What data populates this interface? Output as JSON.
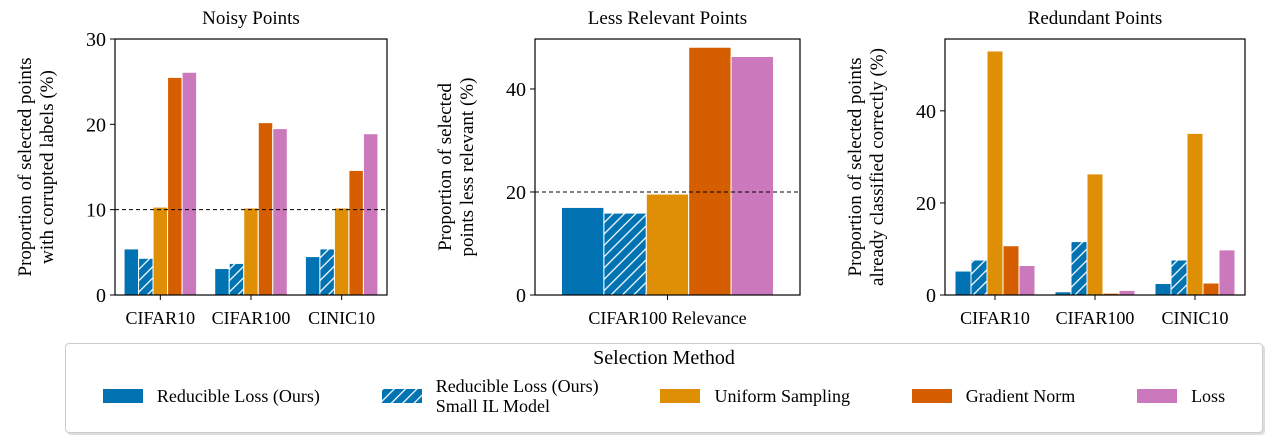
{
  "chart_data": [
    {
      "type": "bar",
      "title": "Noisy Points",
      "y_label": [
        "Proportion of selected points",
        "with corrupted labels (%)"
      ],
      "categories": [
        "CIFAR10",
        "CIFAR100",
        "CINIC10"
      ],
      "series": [
        {
          "name": "Reducible Loss (Ours)",
          "color": "#0173b2",
          "values": [
            5.4,
            3.1,
            4.5
          ]
        },
        {
          "name": "Reducible Loss (Ours)\nSmall IL Model",
          "color": "#0173b2",
          "hatch": true,
          "values": [
            4.3,
            3.7,
            5.4
          ]
        },
        {
          "name": "Uniform Sampling",
          "color": "#de8f05",
          "values": [
            10.3,
            10.2,
            10.2
          ]
        },
        {
          "name": "Gradient Norm",
          "color": "#d55e00",
          "values": [
            25.5,
            20.2,
            14.6
          ]
        },
        {
          "name": "Loss",
          "color": "#cc78bc",
          "values": [
            26.1,
            19.5,
            18.9
          ]
        }
      ],
      "reference_line": 10,
      "ylim": [
        0,
        30
      ],
      "yticks": [
        0,
        10,
        20,
        30
      ]
    },
    {
      "type": "bar",
      "title": "Less Relevant Points",
      "y_label": [
        "Proportion of selected",
        "points less relevant (%)"
      ],
      "categories": [
        "CIFAR100 Relevance"
      ],
      "series": [
        {
          "name": "Reducible Loss (Ours)",
          "color": "#0173b2",
          "values": [
            17.0
          ]
        },
        {
          "name": "Reducible Loss (Ours)\nSmall IL Model",
          "color": "#0173b2",
          "hatch": true,
          "values": [
            15.9
          ]
        },
        {
          "name": "Uniform Sampling",
          "color": "#de8f05",
          "values": [
            19.6
          ]
        },
        {
          "name": "Gradient Norm",
          "color": "#d55e00",
          "values": [
            48.1
          ]
        },
        {
          "name": "Loss",
          "color": "#cc78bc",
          "values": [
            46.3
          ]
        }
      ],
      "reference_line": 20,
      "ylim": [
        0,
        49.7
      ],
      "yticks": [
        0,
        20,
        40
      ]
    },
    {
      "type": "bar",
      "title": "Redundant Points",
      "y_label": [
        "Proportion of selected points",
        "already classified correctly (%)"
      ],
      "categories": [
        "CIFAR10",
        "CIFAR100",
        "CINIC10"
      ],
      "series": [
        {
          "name": "Reducible Loss (Ours)",
          "color": "#0173b2",
          "values": [
            5.2,
            0.7,
            2.5
          ]
        },
        {
          "name": "Reducible Loss (Ours)\nSmall IL Model",
          "color": "#0173b2",
          "hatch": true,
          "values": [
            7.6,
            11.6,
            7.6
          ]
        },
        {
          "name": "Uniform Sampling",
          "color": "#de8f05",
          "values": [
            53.0,
            26.3,
            35.1
          ]
        },
        {
          "name": "Gradient Norm",
          "color": "#d55e00",
          "values": [
            10.7,
            0.4,
            2.6
          ]
        },
        {
          "name": "Loss",
          "color": "#cc78bc",
          "values": [
            6.4,
            1.0,
            9.8
          ]
        }
      ],
      "ylim": [
        0,
        55.6
      ],
      "yticks": [
        0,
        20,
        40
      ]
    }
  ],
  "legend": {
    "title": "Selection Method"
  }
}
